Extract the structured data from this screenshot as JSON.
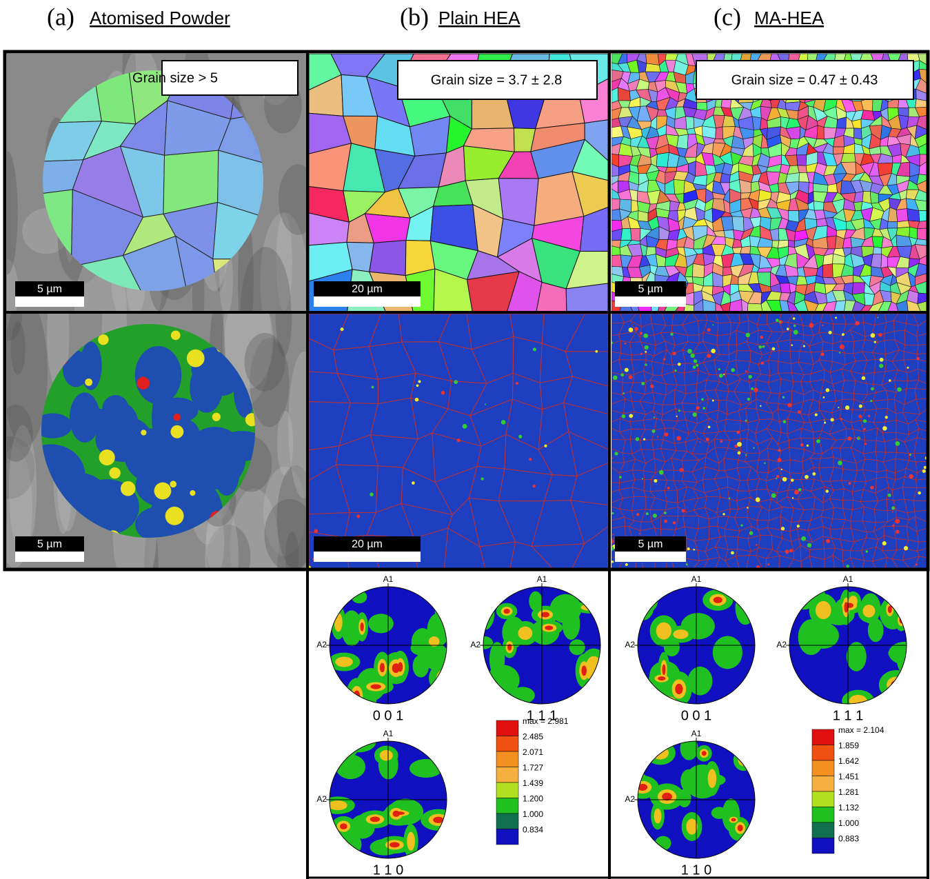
{
  "columns": [
    {
      "letter": "(a)",
      "title": "Atomised Powder"
    },
    {
      "letter": "(b)",
      "title": "Plain HEA"
    },
    {
      "letter": "(c)",
      "title": "MA-HEA"
    }
  ],
  "grain_size": [
    "Grain size > 5",
    "Grain size = 3.7 ± 2.8",
    "Grain size = 0.47 ± 0.43"
  ],
  "scale_bars": {
    "row1": [
      "5 µm",
      "20 µm",
      "5 µm"
    ],
    "row2": [
      "5 µm",
      "20 µm",
      "5 µm"
    ]
  },
  "pole_figures": [
    {
      "top_axis": "A1",
      "left_axis": "A2",
      "planes": [
        "0 0 1",
        "1 1 1",
        "1 1 0"
      ],
      "legend": [
        "max = 2.981",
        "2.485",
        "2.071",
        "1.727",
        "1.439",
        "1.200",
        "1.000",
        "0.834"
      ]
    },
    {
      "top_axis": "A1",
      "left_axis": "A2",
      "planes": [
        "0 0 1",
        "1 1 1",
        "1 1 0"
      ],
      "legend": [
        "max = 2.104",
        "1.859",
        "1.642",
        "1.451",
        "1.281",
        "1.132",
        "1.000",
        "0.883"
      ]
    }
  ]
}
